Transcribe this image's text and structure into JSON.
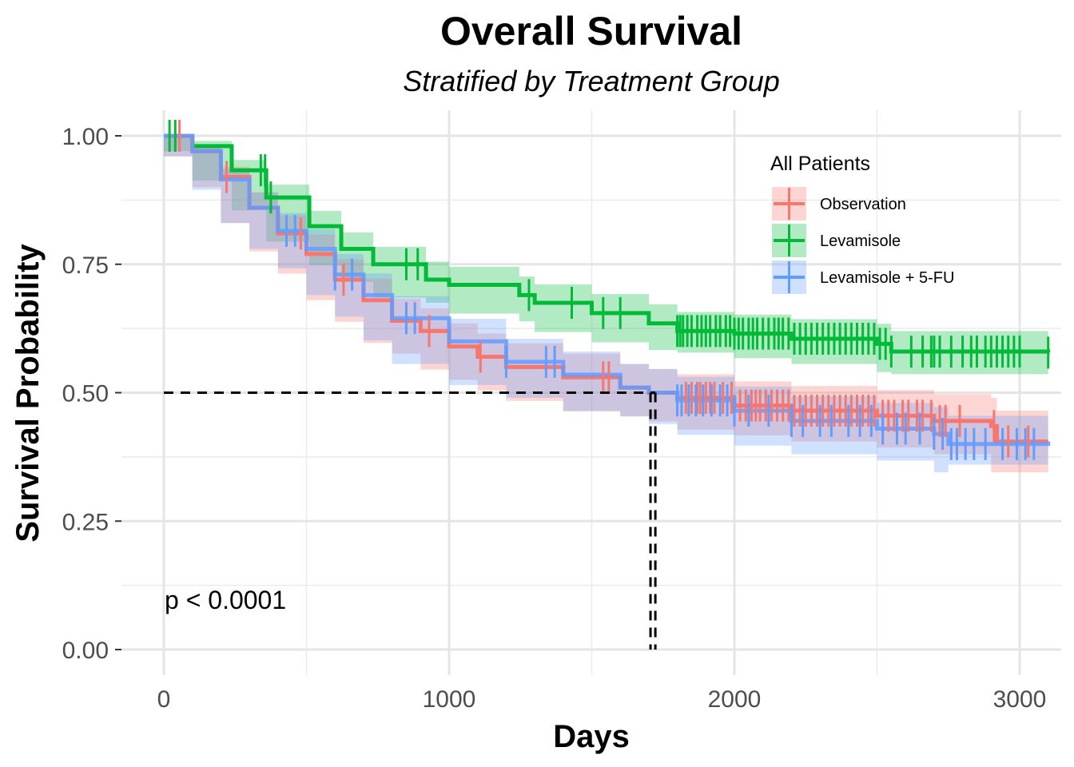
{
  "chart_data": {
    "type": "line",
    "subtype": "kaplan-meier survival curve",
    "title": "Overall Survival",
    "subtitle": "Stratified by Treatment Group",
    "xlabel": "Days",
    "ylabel": "Survival Probability",
    "xlim": [
      -150,
      3150
    ],
    "ylim": [
      -0.04,
      1.04
    ],
    "xticks": [
      "0",
      "1000",
      "2000",
      "3000"
    ],
    "xtick_values": [
      0,
      1000,
      2000,
      3000
    ],
    "yticks": [
      "0.00",
      "0.25",
      "0.50",
      "0.75",
      "1.00"
    ],
    "ytick_values": [
      0,
      0.25,
      0.5,
      0.75,
      1.0
    ],
    "grid": true,
    "legend": {
      "title": "All Patients",
      "placement": "top-right"
    },
    "annotation": "p < 0.0001",
    "median_line": {
      "survival": 0.5,
      "medians": [
        1706,
        1723
      ]
    },
    "series": [
      {
        "name": "Observation",
        "color": "#F8766D",
        "x": [
          0,
          100,
          200,
          300,
          400,
          500,
          600,
          700,
          800,
          900,
          1000,
          1100,
          1200,
          1400,
          1600,
          1700,
          1800,
          2000,
          2200,
          2500,
          2700,
          2900,
          2920,
          3100
        ],
        "y": [
          1.0,
          0.97,
          0.92,
          0.86,
          0.81,
          0.77,
          0.72,
          0.68,
          0.64,
          0.62,
          0.59,
          0.57,
          0.55,
          0.53,
          0.51,
          0.5,
          0.49,
          0.475,
          0.465,
          0.455,
          0.445,
          0.435,
          0.405,
          0.405
        ],
        "ci_halfwidth": [
          0,
          0.01,
          0.02,
          0.03,
          0.035,
          0.038,
          0.04,
          0.042,
          0.043,
          0.044,
          0.045,
          0.045,
          0.046,
          0.046,
          0.046,
          0.046,
          0.046,
          0.047,
          0.048,
          0.05,
          0.052,
          0.055,
          0.06,
          0.06
        ],
        "censor": [
          55,
          220,
          480,
          630,
          930,
          1110,
          1540,
          1560,
          1830,
          1850,
          1870,
          1880,
          1900,
          1915,
          1930,
          1960,
          1990,
          2020,
          2040,
          2060,
          2075,
          2090,
          2110,
          2130,
          2150,
          2170,
          2190,
          2210,
          2230,
          2250,
          2270,
          2290,
          2310,
          2330,
          2350,
          2370,
          2390,
          2410,
          2430,
          2450,
          2470,
          2490,
          2520,
          2540,
          2560,
          2590,
          2610,
          2640,
          2660,
          2690,
          2720,
          2740,
          2790,
          2910,
          2960,
          3030
        ]
      },
      {
        "name": "Levamisole",
        "color": "#00BA38",
        "x": [
          0,
          100,
          238,
          359,
          510,
          622,
          734,
          919,
          1000,
          1246,
          1300,
          1500,
          1700,
          1800,
          2000,
          2200,
          2500,
          2550,
          3100
        ],
        "y": [
          1.0,
          0.98,
          0.933,
          0.88,
          0.824,
          0.78,
          0.75,
          0.72,
          0.71,
          0.69,
          0.675,
          0.655,
          0.635,
          0.62,
          0.615,
          0.605,
          0.595,
          0.58,
          0.578
        ],
        "ci_halfwidth": [
          0,
          0.01,
          0.02,
          0.025,
          0.03,
          0.032,
          0.034,
          0.035,
          0.035,
          0.036,
          0.036,
          0.037,
          0.037,
          0.037,
          0.037,
          0.038,
          0.039,
          0.04,
          0.042
        ],
        "censor": [
          20,
          40,
          340,
          355,
          375,
          850,
          890,
          1280,
          1430,
          1540,
          1600,
          1800,
          1810,
          1820,
          1835,
          1850,
          1870,
          1885,
          1900,
          1915,
          1935,
          1950,
          1970,
          1985,
          2000,
          2015,
          2030,
          2050,
          2065,
          2080,
          2100,
          2120,
          2140,
          2155,
          2170,
          2190,
          2210,
          2230,
          2250,
          2270,
          2290,
          2310,
          2330,
          2350,
          2370,
          2390,
          2410,
          2430,
          2450,
          2470,
          2490,
          2510,
          2530,
          2550,
          2620,
          2660,
          2690,
          2700,
          2720,
          2760,
          2800,
          2830,
          2850,
          2880,
          2900,
          2920,
          2940,
          2960,
          2980,
          3000,
          3100
        ]
      },
      {
        "name": "Levamisole + 5-FU",
        "color": "#619CFF",
        "x": [
          0,
          100,
          200,
          300,
          400,
          500,
          600,
          700,
          800,
          1000,
          1200,
          1400,
          1600,
          1700,
          1800,
          2000,
          2200,
          2500,
          2700,
          2750,
          3100
        ],
        "y": [
          1.0,
          0.97,
          0.915,
          0.86,
          0.815,
          0.78,
          0.73,
          0.69,
          0.645,
          0.6,
          0.56,
          0.535,
          0.51,
          0.5,
          0.485,
          0.465,
          0.445,
          0.43,
          0.42,
          0.4,
          0.405
        ],
        "ci_halfwidth": [
          0,
          0.01,
          0.02,
          0.03,
          0.035,
          0.038,
          0.04,
          0.042,
          0.043,
          0.044,
          0.045,
          0.045,
          0.046,
          0.046,
          0.046,
          0.047,
          0.048,
          0.05,
          0.052,
          0.055,
          0.045
        ],
        "censor": [
          430,
          460,
          600,
          660,
          850,
          880,
          1200,
          1340,
          1370,
          1800,
          1815,
          1840,
          1865,
          1890,
          1920,
          1950,
          1975,
          2000,
          2050,
          2120,
          2200,
          2240,
          2300,
          2340,
          2400,
          2440,
          2480,
          2520,
          2570,
          2600,
          2650,
          2700,
          2730,
          2760,
          2780,
          2810,
          2840,
          2880,
          2940,
          2990,
          3020,
          3050
        ]
      }
    ]
  }
}
